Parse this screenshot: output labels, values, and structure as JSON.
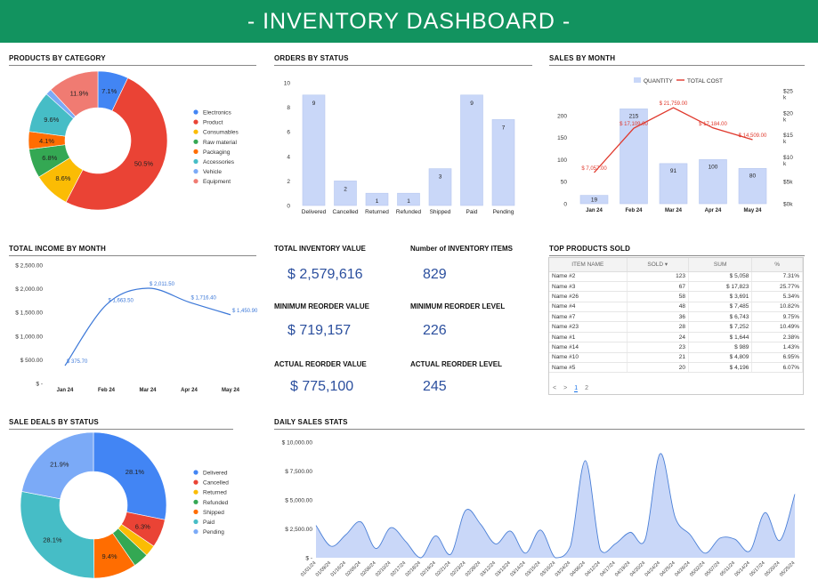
{
  "header": {
    "title": "-  INVENTORY DASHBOARD  -"
  },
  "sections": {
    "products_by_category": "PRODUCTS BY CATEGORY",
    "orders_by_status": "ORDERS BY STATUS",
    "sales_by_month": "SALES BY MONTH",
    "total_income_by_month": "TOTAL INCOME BY MONTH",
    "top_products_sold": "TOP PRODUCTS SOLD",
    "sale_deals_by_status": "SALE DEALS BY STATUS",
    "daily_sales_stats": "DAILY SALES STATS"
  },
  "kpis": [
    {
      "label": "TOTAL INVENTORY VALUE",
      "value": "$ 2,579,616"
    },
    {
      "label": "Number of INVENTORY ITEMS",
      "value": "829"
    },
    {
      "label": "MINIMUM REORDER VALUE",
      "value": "$ 719,157"
    },
    {
      "label": "MINIMUM REORDER LEVEL",
      "value": "226"
    },
    {
      "label": "ACTUAL REORDER VALUE",
      "value": "$ 775,100"
    },
    {
      "label": "ACTUAL REORDER LEVEL",
      "value": "245"
    }
  ],
  "top_products": {
    "columns": [
      "ITEM NAME",
      "SOLD",
      "SUM",
      "%"
    ],
    "sort_indicator": "▾",
    "rows": [
      [
        "Name #2",
        "123",
        "$ 5,058",
        "7.31%"
      ],
      [
        "Name #3",
        "67",
        "$ 17,823",
        "25.77%"
      ],
      [
        "Name #26",
        "58",
        "$ 3,691",
        "5.34%"
      ],
      [
        "Name #4",
        "48",
        "$ 7,485",
        "10.82%"
      ],
      [
        "Name #7",
        "36",
        "$ 6,743",
        "9.75%"
      ],
      [
        "Name #23",
        "28",
        "$ 7,252",
        "10.49%"
      ],
      [
        "Name #1",
        "24",
        "$ 1,644",
        "2.38%"
      ],
      [
        "Name #14",
        "23",
        "$ 989",
        "1.43%"
      ],
      [
        "Name #10",
        "21",
        "$ 4,809",
        "6.95%"
      ],
      [
        "Name #5",
        "20",
        "$ 4,196",
        "6.07%"
      ]
    ],
    "pager": {
      "prev": "<",
      "next": ">",
      "pages": [
        "1",
        "2"
      ]
    }
  },
  "chart_data": [
    {
      "id": "products_by_category",
      "type": "pie",
      "title": "PRODUCTS BY CATEGORY",
      "donut": true,
      "legend_position": "right",
      "slices": [
        {
          "label": "Electronics",
          "value": 7.1,
          "display": "7.1%",
          "color": "#4285f4"
        },
        {
          "label": "Product",
          "value": 50.5,
          "display": "50.5%",
          "color": "#ea4335"
        },
        {
          "label": "Consumables",
          "value": 8.6,
          "display": "8.6%",
          "color": "#fbbc04"
        },
        {
          "label": "Raw material",
          "value": 6.8,
          "display": "6.8%",
          "color": "#34a853"
        },
        {
          "label": "Packaging",
          "value": 4.1,
          "display": "4.1%",
          "color": "#ff6d01"
        },
        {
          "label": "Accessories",
          "value": 9.6,
          "display": "9.6%",
          "color": "#46bdc6"
        },
        {
          "label": "Vehicle",
          "value": 1.4,
          "display": "",
          "color": "#7baaf7"
        },
        {
          "label": "Equipment",
          "value": 11.9,
          "display": "11.9%",
          "color": "#f07b72"
        }
      ]
    },
    {
      "id": "orders_by_status",
      "type": "bar",
      "title": "ORDERS BY STATUS",
      "categories": [
        "Delivered",
        "Cancelled",
        "Returned",
        "Refunded",
        "Shipped",
        "Paid",
        "Pending"
      ],
      "values": [
        9,
        2,
        1,
        1,
        3,
        9,
        7
      ],
      "ylim": [
        0,
        10
      ],
      "yticks": [
        "0",
        "2",
        "4",
        "6",
        "8",
        "10"
      ],
      "color": "#c9d7f8"
    },
    {
      "id": "sales_by_month",
      "type": "bar",
      "title": "SALES BY MONTH",
      "categories": [
        "Jan 24",
        "Feb 24",
        "Mar 24",
        "Apr 24",
        "May 24"
      ],
      "series": [
        {
          "name": "QUANTITY",
          "type": "bar",
          "values": [
            19,
            215,
            91,
            100,
            80
          ],
          "color": "#c9d7f8"
        },
        {
          "name": "TOTAL COST",
          "type": "line",
          "values": [
            7057,
            17109,
            21759,
            17184,
            14509
          ],
          "labels": [
            "$ 7,057.00",
            "$ 17,109.00",
            "$ 21,759.00",
            "$ 17,184.00",
            "$ 14,509.00"
          ],
          "color": "#e0382c"
        }
      ],
      "ylim_left": [
        0,
        250
      ],
      "yticks_left": [
        "0",
        "50",
        "100",
        "150",
        "200"
      ],
      "ylim_right": [
        0,
        25000
      ],
      "yticks_right": [
        "$0k",
        "$5k",
        "$10\nk",
        "$15\nk",
        "$20\nk",
        "$25\nk"
      ],
      "legend_position": "top"
    },
    {
      "id": "total_income_by_month",
      "type": "line",
      "title": "TOTAL INCOME BY MONTH",
      "categories": [
        "Jan 24",
        "Feb 24",
        "Mar 24",
        "Apr 24",
        "May 24"
      ],
      "values": [
        375.7,
        1663.5,
        2011.5,
        1716.4,
        1450.9
      ],
      "labels": [
        "$ 375.70",
        "$ 1,663.50",
        "$ 2,011.50",
        "$ 1,716.40",
        "$ 1,450.90"
      ],
      "ylim": [
        0,
        2500
      ],
      "yticks": [
        "$ -",
        "$ 500.00",
        "$ 1,000.00",
        "$ 1,500.00",
        "$ 2,000.00",
        "$ 2,500.00"
      ],
      "color": "#3c78d8"
    },
    {
      "id": "sale_deals_by_status",
      "type": "pie",
      "title": "SALE DEALS BY STATUS",
      "donut": true,
      "legend_position": "right",
      "slices": [
        {
          "label": "Delivered",
          "value": 28.1,
          "display": "28.1%",
          "color": "#4285f4"
        },
        {
          "label": "Cancelled",
          "value": 6.3,
          "display": "6.3%",
          "color": "#ea4335"
        },
        {
          "label": "Returned",
          "value": 2.5,
          "display": "",
          "color": "#fbbc04"
        },
        {
          "label": "Refunded",
          "value": 3.4,
          "display": "",
          "color": "#34a853"
        },
        {
          "label": "Shipped",
          "value": 9.4,
          "display": "9.4%",
          "color": "#ff6d01"
        },
        {
          "label": "Paid",
          "value": 28.1,
          "display": "28.1%",
          "color": "#46bdc6"
        },
        {
          "label": "Pending",
          "value": 21.9,
          "display": "21.9%",
          "color": "#7baaf7"
        }
      ]
    },
    {
      "id": "daily_sales_stats",
      "type": "area",
      "title": "DAILY SALES STATS",
      "x": [
        "01/01/24",
        "01/09/24",
        "01/16/24",
        "02/05/24",
        "02/06/24",
        "02/10/24",
        "02/17/24",
        "02/18/24",
        "02/19/24",
        "02/21/24",
        "02/23/24",
        "02/28/24",
        "03/12/24",
        "03/13/24",
        "03/14/24",
        "03/15/24",
        "03/16/24",
        "03/24/24",
        "04/06/24",
        "04/12/24",
        "04/17/24",
        "04/19/24",
        "04/20/24",
        "04/24/24",
        "04/25/24",
        "04/26/24",
        "05/02/24",
        "05/07/24",
        "05/11/24",
        "05/14/24",
        "05/17/24",
        "05/20/24",
        "05/25/24"
      ],
      "values": [
        2800,
        1000,
        2000,
        3100,
        800,
        2600,
        1400,
        0,
        1900,
        300,
        4100,
        2900,
        1200,
        2300,
        400,
        2400,
        0,
        1000,
        8400,
        700,
        1200,
        2200,
        1600,
        9000,
        3500,
        2000,
        400,
        1700,
        1600,
        600,
        3900,
        1500,
        5500
      ],
      "ylim": [
        0,
        10000
      ],
      "yticks": [
        "$ -",
        "$ 2,500.00",
        "$ 5,000.00",
        "$ 7,500.00",
        "$ 10,000.00"
      ],
      "color": "#c9d7f8",
      "line_color": "#4a7fd6"
    }
  ]
}
